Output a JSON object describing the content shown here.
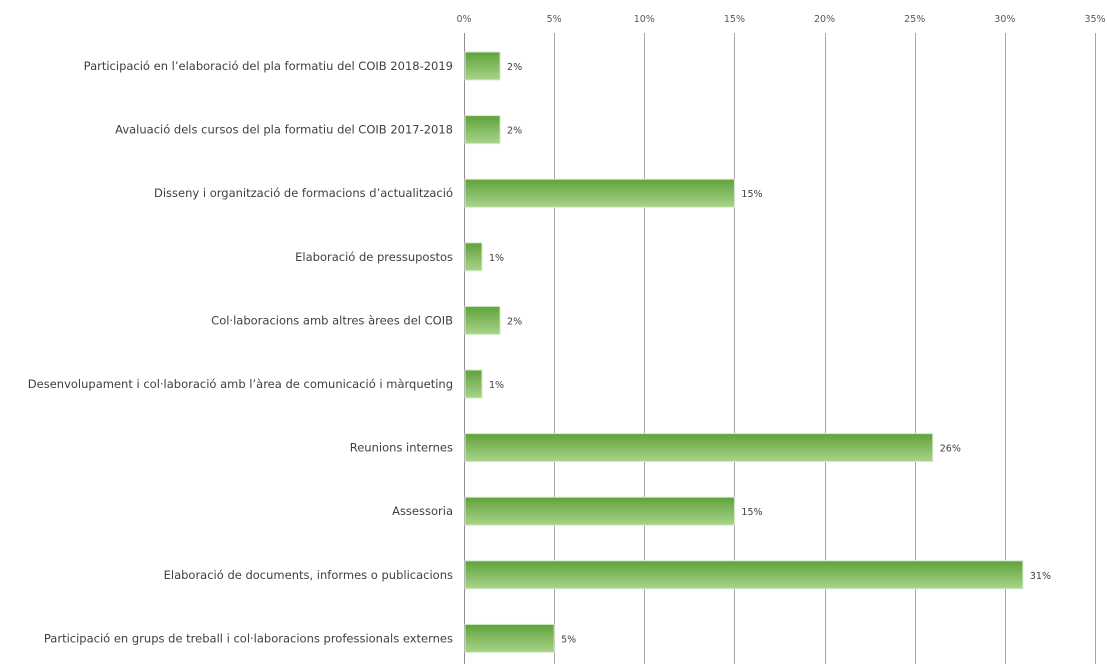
{
  "chart_data": {
    "type": "bar",
    "orientation": "horizontal",
    "title": "",
    "xlabel": "",
    "ylabel": "",
    "xlim": [
      0,
      35
    ],
    "x_ticks": [
      "0%",
      "5%",
      "10%",
      "15%",
      "20%",
      "25%",
      "30%",
      "35%"
    ],
    "x_tick_values": [
      0,
      5,
      10,
      15,
      20,
      25,
      30,
      35
    ],
    "x_axis_position": "top",
    "grid": true,
    "legend": false,
    "bar_color": "#7cba4f",
    "categories": [
      "Participació en l’elaboració del pla formatiu del COIB 2018-2019",
      "Avaluació dels cursos del pla formatiu del COIB 2017-2018",
      "Disseny i organització de formacions d’actualització",
      "Elaboració de pressupostos",
      "Col·laboracions amb altres àrees del COIB",
      "Desenvolupament i col·laboració amb l’àrea de comunicació i màrqueting",
      "Reunions internes",
      "Assessoria",
      "Elaboració de documents, informes o publicacions",
      "Participació en grups de treball i col·laboracions professionals externes"
    ],
    "values": [
      2,
      2,
      15,
      1,
      2,
      1,
      26,
      15,
      31,
      5
    ],
    "data_labels": [
      "2%",
      "2%",
      "15%",
      "1%",
      "2%",
      "1%",
      "26%",
      "15%",
      "31%",
      "5%"
    ]
  }
}
